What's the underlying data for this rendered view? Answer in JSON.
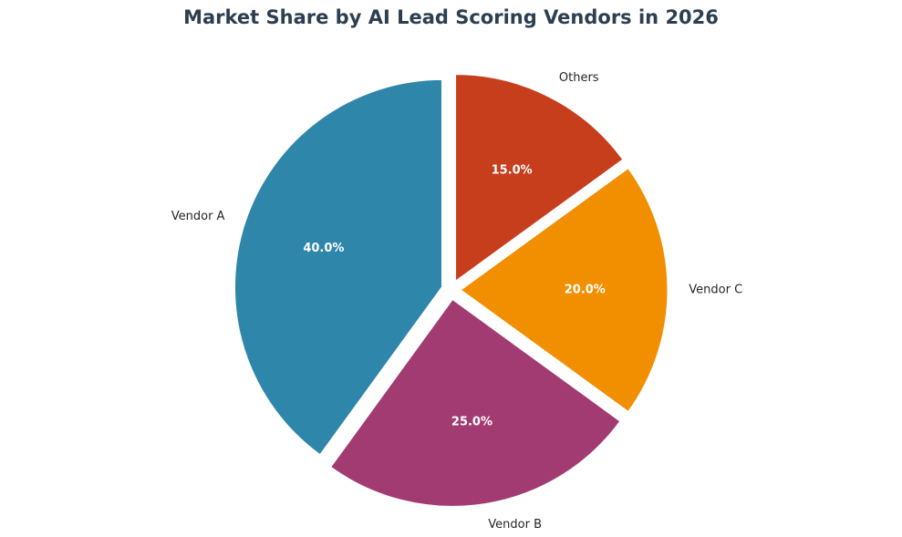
{
  "chart_data": {
    "type": "pie",
    "title": "Market Share by AI Lead Scoring Vendors in 2026",
    "categories": [
      "Vendor A",
      "Vendor B",
      "Vendor C",
      "Others"
    ],
    "values": [
      40.0,
      25.0,
      20.0,
      15.0
    ],
    "percent_labels": [
      "40.0%",
      "25.0%",
      "20.0%",
      "15.0%"
    ],
    "colors": [
      "#2e86ab",
      "#a23b72",
      "#f18f01",
      "#c73e1d"
    ],
    "start_angle_deg": 90,
    "direction": "counterclockwise",
    "exploded": true,
    "legend": "none"
  }
}
